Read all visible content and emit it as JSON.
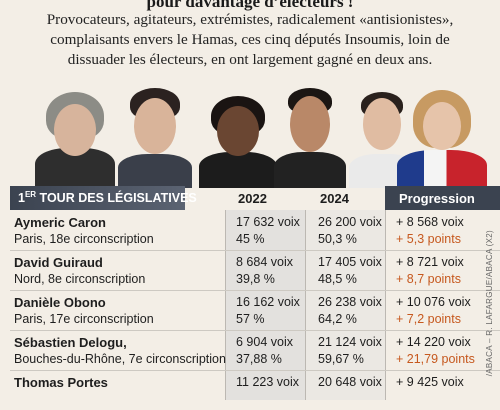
{
  "title_partial": "pour davantage d’électeurs !",
  "intro": "Provocateurs, agitateurs, extrémistes, radicalement «antisionistes», complaisants envers le Hamas, ces cinq députés Insoumis, loin de dissuader les électeurs, en ont largement gagné en deux ans.",
  "table": {
    "header_col1_pre": "1",
    "header_col1_sup": "ER",
    "header_col1_post": " TOUR DES LÉGISLATIVES",
    "header_2022": "2022",
    "header_2024": "2024",
    "header_progression": "Progression",
    "rows": [
      {
        "name": "Aymeric Caron",
        "place": "Paris, 18e circonscription",
        "v2022": "17 632 voix",
        "p2022": "45 %",
        "v2024": "26 200 voix",
        "p2024": "50,3 %",
        "gain": "+ 8 568 voix",
        "points": "+ 5,3 points"
      },
      {
        "name": "David Guiraud",
        "place": "Nord, 8e circonscription",
        "v2022": "8 684 voix",
        "p2022": "39,8 %",
        "v2024": "17 405 voix",
        "p2024": "48,5 %",
        "gain": "+ 8 721 voix",
        "points": "+ 8,7 points"
      },
      {
        "name": "Danièle Obono",
        "place": "Paris, 17e circonscription",
        "v2022": "16 162 voix",
        "p2022": "57 %",
        "v2024": "26 238 voix",
        "p2024": "64,2 %",
        "gain": "+ 10 076 voix",
        "points": "+ 7,2 points"
      },
      {
        "name": "Sébastien Delogu,",
        "place": "Bouches-du-Rhône, 7e circonscription",
        "v2022": "6 904 voix",
        "p2022": "37,88 %",
        "v2024": "21 124 voix",
        "p2024": "59,67 %",
        "gain": "+ 14 220 voix",
        "points": "+ 21,79 points"
      },
      {
        "name": "Thomas Portes",
        "place": "",
        "v2022": "11 223 voix",
        "p2022": "",
        "v2024": "20 648 voix",
        "p2024": "",
        "gain": "+ 9 425 voix",
        "points": ""
      }
    ]
  },
  "photo_credit": "/ABACA – R. LAFARGUE/ABACA (X2)",
  "colors": {
    "header_dark": "#3b4350",
    "accent_orange": "#c6581e",
    "paper": "#f3eee6"
  }
}
